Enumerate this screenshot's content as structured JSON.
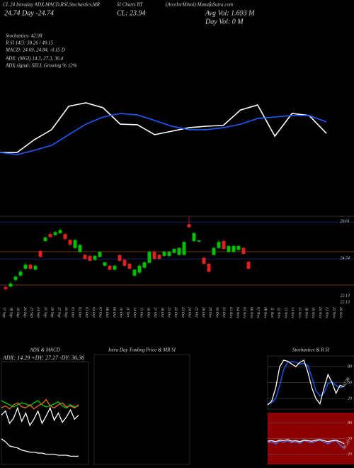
{
  "header": {
    "lines": [
      "CL 24 Intraday ADX,MACD,R",
      "SI,Stochastics,MR",
      "SI Charts BT",
      "(ArcelorMittal) MunafaSutra.com",
      "24.74 Day -24.74",
      "CL: 23.94",
      "Avg Vol: 1.693 M",
      "Day Vol: 0 M",
      "Stochastics: 42.98",
      "R SI 14/3: 30.26 / 49.15",
      "MACD: 24.69, 24.84, -0.15 D",
      "ADX: (MGI) 14.3, 27.3, 36.4",
      "ADX signal: SELL Growing % 12%"
    ]
  },
  "chart_data": [
    {
      "type": "line",
      "ylim": [
        22.5,
        27.5
      ],
      "series": [
        {
          "color": "#ffffff",
          "values": [
            23.85,
            23.85,
            24.54,
            25.08,
            26.35,
            26.54,
            26.27,
            25.38,
            25.35,
            24.81,
            25.0,
            25.19,
            25.27,
            25.31,
            26.15,
            26.42,
            24.73,
            25.96,
            25.85,
            24.88
          ]
        },
        {
          "color": "#1e5bff",
          "values": [
            23.85,
            23.73,
            23.96,
            24.23,
            24.81,
            25.38,
            25.77,
            25.96,
            25.88,
            25.58,
            25.27,
            25.08,
            25.08,
            25.19,
            25.38,
            25.69,
            25.77,
            25.85,
            25.85,
            25.5
          ]
        }
      ]
    },
    {
      "type": "candlestick",
      "ylim": [
        22.6,
        26.9
      ],
      "yticks": [
        {
          "value": 26.61,
          "label": "26.61"
        },
        {
          "value": 24.74,
          "label": "24.74"
        }
      ],
      "low_labels": [
        "22.13",
        "22.13"
      ],
      "up_color": "#00c000",
      "down_color": "#e02020",
      "x": [
        "17 Sep",
        "18 Sep",
        "19 Sep",
        "20 Sep",
        "23 Sep",
        "24 Sep",
        "25 Sep",
        "26 Sep",
        "27 Sep",
        "30 Sep",
        "01 Oct",
        "02 Oct",
        "03 Oct",
        "04 Oct",
        "07 Oct",
        "08 Oct",
        "09 Oct",
        "10 Oct",
        "11 Oct",
        "14 Oct",
        "15 Oct",
        "16 Oct",
        "17 Oct",
        "18 Oct",
        "21 Oct",
        "22 Oct",
        "23 Oct",
        "24 Oct",
        "25 Oct",
        "28 Oct",
        "29 Oct",
        "30 Oct",
        "31 Oct",
        "01 Nov",
        "04 Nov",
        "05 Nov",
        "06 Nov",
        "07 Nov",
        "08 Nov",
        "11 Nov",
        "12 Nov",
        "13 Nov",
        "14 Nov",
        "15 Nov",
        "18 Nov",
        "19 Nov",
        "20 Nov",
        "21 Nov",
        "22 Nov",
        "26 Nov"
      ],
      "open": [
        23.32,
        23.35,
        23.68,
        23.9,
        24.25,
        24.45,
        24.2,
        25.15,
        25.65,
        26.0,
        25.95,
        26.05,
        26.0,
        25.7,
        25.3,
        25.1,
        24.95,
        24.9,
        24.7,
        24.85,
        24.4,
        24.4,
        24.2,
        24.93,
        24.7,
        24.5,
        23.9,
        24.05,
        24.3,
        24.55,
        25.1,
        24.95,
        24.9,
        24.9,
        25.05,
        24.95,
        24.95,
        26.5,
        25.65,
        25.62,
        24.8,
        24.5,
        24.95,
        25.3,
        25.65,
        25.1,
        25.1,
        25.2,
        25.3,
        24.6
      ],
      "high": [
        23.4,
        23.6,
        23.92,
        24.2,
        24.55,
        24.5,
        24.45,
        25.2,
        25.9,
        26.1,
        26.15,
        26.3,
        26.05,
        25.75,
        25.75,
        25.5,
        25.0,
        24.95,
        24.95,
        25.15,
        24.6,
        24.45,
        24.45,
        25.0,
        24.75,
        24.55,
        24.25,
        24.5,
        24.65,
        25.2,
        25.2,
        25.0,
        25.15,
        25.15,
        25.3,
        25.35,
        25.65,
        26.9,
        26.1,
        25.7,
        24.85,
        24.55,
        25.35,
        25.7,
        25.7,
        25.45,
        25.45,
        25.45,
        25.35,
        24.65
      ],
      "low": [
        23.14,
        23.3,
        23.6,
        23.85,
        24.2,
        24.2,
        24.15,
        24.8,
        25.6,
        25.8,
        25.9,
        26.0,
        25.7,
        25.4,
        25.25,
        25.05,
        24.7,
        24.6,
        24.65,
        24.8,
        24.35,
        24.15,
        24.15,
        24.6,
        24.35,
        24.2,
        23.85,
        24.0,
        24.25,
        24.5,
        24.7,
        24.7,
        24.85,
        24.85,
        25.0,
        24.9,
        24.9,
        26.3,
        25.6,
        25.6,
        24.45,
        24.05,
        24.9,
        25.25,
        25.2,
        25.05,
        25.05,
        25.15,
        24.95,
        24.2
      ],
      "close": [
        23.22,
        23.5,
        23.85,
        24.1,
        24.45,
        24.25,
        24.4,
        24.85,
        25.83,
        25.85,
        26.1,
        26.2,
        25.75,
        25.47,
        25.7,
        25.45,
        24.75,
        24.65,
        24.9,
        25.1,
        24.57,
        24.2,
        24.4,
        24.65,
        24.4,
        24.25,
        24.2,
        24.4,
        24.57,
        25.1,
        24.75,
        24.75,
        25.1,
        25.1,
        25.25,
        25.3,
        25.6,
        26.35,
        26.05,
        25.68,
        24.5,
        24.1,
        25.3,
        25.6,
        25.25,
        25.4,
        25.4,
        25.4,
        25.0,
        24.25
      ]
    },
    {
      "type": "line",
      "title": "ADX & MACD",
      "subtitle": "ADX: 14.29 +DY: 27.27 -DY: 36.36",
      "ylim": [
        0,
        100
      ],
      "series": [
        {
          "color": "#00d000",
          "values": [
            62,
            60,
            58,
            56,
            58,
            60,
            59,
            57,
            60,
            62,
            58,
            56,
            57,
            59,
            61,
            57,
            55,
            58,
            56,
            57
          ]
        },
        {
          "color": "#ffffff",
          "values": [
            48,
            52,
            40,
            45,
            55,
            42,
            50,
            38,
            44,
            52,
            40,
            47,
            55,
            43,
            50,
            41,
            46,
            53,
            44,
            48
          ]
        },
        {
          "color": "#e07020",
          "values": [
            55,
            57,
            54,
            58,
            60,
            56,
            55,
            58,
            54,
            57,
            59,
            63,
            57,
            55,
            58,
            60,
            56,
            57,
            55,
            58
          ]
        },
        {
          "color": "#ffffff",
          "values": [
            25,
            22,
            18,
            17,
            16,
            14,
            13,
            12,
            12,
            11,
            11,
            10,
            10,
            10,
            9,
            9,
            9,
            8,
            8,
            8
          ]
        }
      ]
    },
    {
      "type": "empty",
      "title": "Intra Day Trading Price & MR SI"
    },
    {
      "type": "line",
      "title": "Stochastics & R SI",
      "ylim": [
        0,
        100
      ],
      "yticks": [
        80,
        50,
        20
      ],
      "value_label": "42.98",
      "series": [
        {
          "color": "#1e5bff",
          "values": [
            10,
            12,
            20,
            45,
            75,
            88,
            90,
            88,
            85,
            86,
            82,
            60,
            35,
            25,
            30,
            48,
            52,
            45,
            40,
            42.98
          ]
        },
        {
          "color": "#ffffff",
          "values": [
            8,
            15,
            40,
            80,
            92,
            90,
            85,
            80,
            88,
            92,
            70,
            40,
            20,
            10,
            40,
            65,
            50,
            30,
            45,
            42
          ]
        }
      ]
    },
    {
      "type": "line",
      "background": "#8b0000",
      "ylim": [
        0,
        100
      ],
      "yticks": [
        80,
        50,
        20
      ],
      "value_label": "30.26",
      "series": [
        {
          "color": "#4a7aff",
          "values": [
            42,
            44,
            40,
            45,
            43,
            46,
            42,
            44,
            41,
            46,
            44,
            42,
            45,
            47,
            43,
            40,
            44,
            46,
            38,
            30.26
          ]
        },
        {
          "color": "#ffffff",
          "values": [
            45,
            46,
            44,
            47,
            46,
            48,
            45,
            46,
            44,
            47,
            46,
            45,
            47,
            48,
            46,
            44,
            46,
            47,
            44,
            40
          ]
        }
      ]
    }
  ]
}
